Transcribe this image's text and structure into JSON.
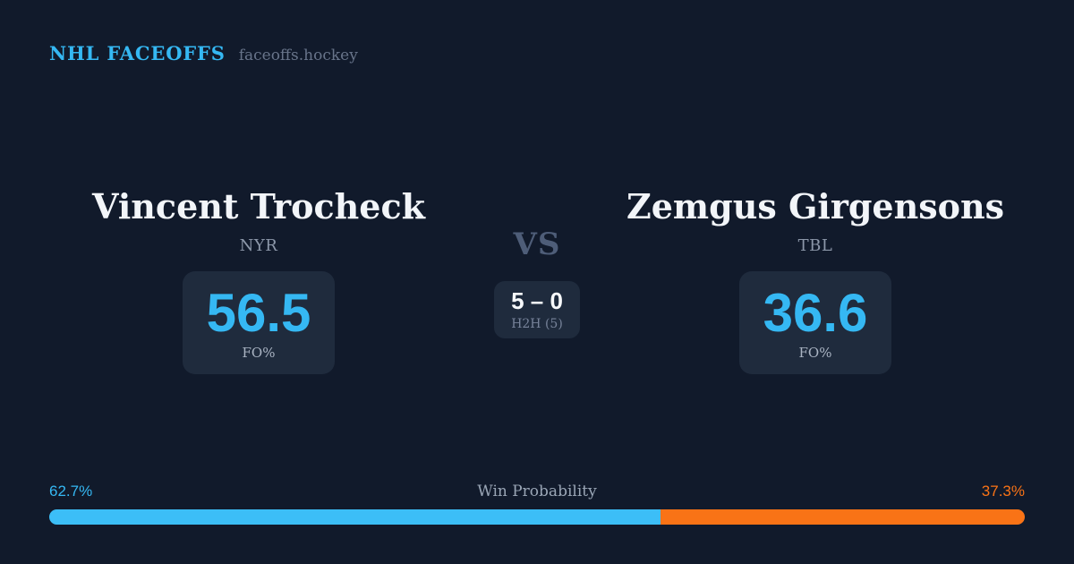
{
  "header": {
    "brand": "NHL FACEOFFS",
    "site": "faceoffs.hockey"
  },
  "matchup": {
    "vs_label": "VS",
    "player1": {
      "name": "Vincent Trocheck",
      "team": "NYR",
      "stat_value": "56.5",
      "stat_label": "FO%"
    },
    "player2": {
      "name": "Zemgus Girgensons",
      "team": "TBL",
      "stat_value": "36.6",
      "stat_label": "FO%"
    },
    "h2h": {
      "record": "5 – 0",
      "label": "H2H (5)"
    }
  },
  "win_probability": {
    "title": "Win Probability",
    "left_pct_label": "62.7%",
    "right_pct_label": "37.3%",
    "left_value": 62.7,
    "right_value": 37.3
  },
  "chart_data": {
    "type": "bar",
    "title": "Win Probability",
    "categories": [
      "Vincent Trocheck (NYR)",
      "Zemgus Girgensons (TBL)"
    ],
    "values": [
      62.7,
      37.3
    ],
    "unit": "%",
    "colors": [
      "#3cbef7",
      "#f97316"
    ],
    "legend_position": "none",
    "orientation": "horizontal-stacked"
  },
  "colors": {
    "background": "#111a2b",
    "card": "#1f2b3d",
    "accent_blue": "#35b8f3",
    "accent_orange": "#f97316",
    "text_primary": "#f2f5f9",
    "text_muted": "#8c97a9",
    "vs_muted": "#4e5d78"
  }
}
